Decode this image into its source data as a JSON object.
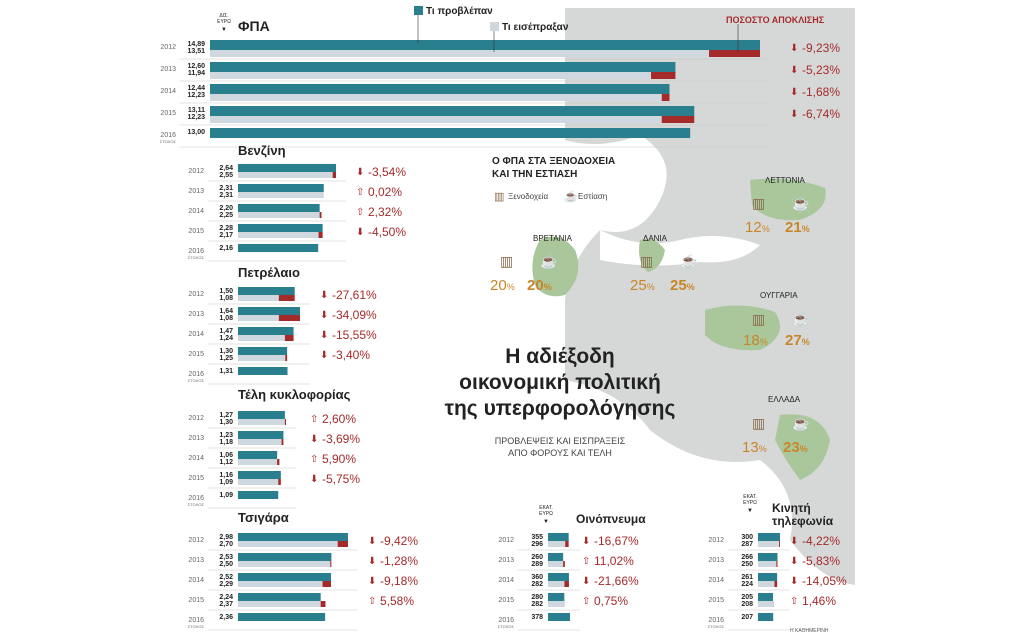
{
  "legend": {
    "forecast": "Τι προβλέπαν",
    "collected": "Τι εισέπραξαν",
    "deviation": "ΠΟΣΟΣΤΟ ΑΠΟΚΛΙΣΗΣ"
  },
  "unit_label": "ΔΙΣ. ΕΥΡΩ",
  "colors": {
    "forecast": "#2a7f8f",
    "collected": "#cfd8df",
    "deviation": "#a52a2a",
    "map_land": "#d6d8d8",
    "map_hl": "#a9c79a",
    "map_sea": "#ffffff",
    "pct_orange": "#c8862a"
  },
  "headline": {
    "title_line1": "Η αδιέξοδη",
    "title_line2": "οικονομική πολιτική",
    "title_line3": "της υπερφορολόγησης",
    "sub_line1": "ΠΡΟΒΛΕΨΕΙΣ ΚΑΙ ΕΙΣΠΡΑΞΕΙΣ",
    "sub_line2": "ΑΠΟ ΦΟΡΟΥΣ ΚΑΙ ΤΕΛΗ"
  },
  "vat_map": {
    "title_line1": "Ο ΦΠΑ ΣΤΑ ΞΕΝΟΔΟΧΕΙΑ",
    "title_line2": "ΚΑΙ ΤΗΝ ΕΣΤΙΑΣΗ",
    "hotels_label": "Ξενοδοχεία",
    "dining_label": "Εστίαση",
    "countries": [
      {
        "name": "ΒΡΕΤΑΝΙΑ",
        "hotels": "20",
        "dining": "20"
      },
      {
        "name": "ΔΑΝΙΑ",
        "hotels": "25",
        "dining": "25"
      },
      {
        "name": "ΛΕΤΤΟΝΙΑ",
        "hotels": "12",
        "dining": "21"
      },
      {
        "name": "ΟΥΓΓΑΡΙΑ",
        "hotels": "18",
        "dining": "27"
      },
      {
        "name": "ΕΛΛΑΔΑ",
        "hotels": "13",
        "dining": "23"
      }
    ]
  },
  "source_credit": "Η ΚΑΘΗΜΕΡΙΝΗ",
  "chart_data": [
    {
      "type": "bar",
      "title": "ΦΠΑ",
      "unit": "ΔΙΣ. ΕΥΡΩ",
      "categories": [
        "2012",
        "2013",
        "2014",
        "2015",
        "2016 ΣΤΟΧΟΣ"
      ],
      "series": [
        {
          "name": "Τι προβλέπαν",
          "values": [
            14.89,
            12.6,
            12.44,
            13.11,
            13.0
          ]
        },
        {
          "name": "Τι εισέπραξαν",
          "values": [
            13.51,
            11.94,
            12.23,
            12.23,
            null
          ]
        }
      ],
      "deviation_pct": [
        "-9,23%",
        "-5,23%",
        "-1,68%",
        "-6,74%"
      ]
    },
    {
      "type": "bar",
      "title": "Βενζίνη",
      "categories": [
        "2012",
        "2013",
        "2014",
        "2015",
        "2016 ΣΤΟΧΟΣ"
      ],
      "series": [
        {
          "name": "Τι προβλέπαν",
          "values": [
            2.64,
            2.31,
            2.2,
            2.28,
            2.16
          ]
        },
        {
          "name": "Τι εισέπραξαν",
          "values": [
            2.55,
            2.31,
            2.25,
            2.17,
            null
          ]
        }
      ],
      "deviation_pct": [
        "-3,54%",
        "0,02%",
        "2,32%",
        "-4,50%"
      ]
    },
    {
      "type": "bar",
      "title": "Πετρέλαιο",
      "categories": [
        "2012",
        "2013",
        "2014",
        "2015",
        "2016 ΣΤΟΧΟΣ"
      ],
      "series": [
        {
          "name": "Τι προβλέπαν",
          "values": [
            1.5,
            1.64,
            1.47,
            1.3,
            1.31
          ]
        },
        {
          "name": "Τι εισέπραξαν",
          "values": [
            1.08,
            1.08,
            1.24,
            1.25,
            null
          ]
        }
      ],
      "deviation_pct": [
        "-27,61%",
        "-34,09%",
        "-15,55%",
        "-3,40%"
      ]
    },
    {
      "type": "bar",
      "title": "Τέλη κυκλοφορίας",
      "categories": [
        "2012",
        "2013",
        "2014",
        "2015",
        "2016 ΣΤΟΧΟΣ"
      ],
      "series": [
        {
          "name": "Τι προβλέπαν",
          "values": [
            1.27,
            1.23,
            1.06,
            1.16,
            1.09
          ]
        },
        {
          "name": "Τι εισέπραξαν",
          "values": [
            1.3,
            1.18,
            1.12,
            1.09,
            null
          ]
        }
      ],
      "deviation_pct": [
        "2,60%",
        "-3,69%",
        "5,90%",
        "-5,75%"
      ]
    },
    {
      "type": "bar",
      "title": "Τσιγάρα",
      "categories": [
        "2012",
        "2013",
        "2014",
        "2015",
        "2016 ΣΤΟΧΟΣ"
      ],
      "series": [
        {
          "name": "Τι προβλέπαν",
          "values": [
            2.98,
            2.53,
            2.52,
            2.24,
            2.36
          ]
        },
        {
          "name": "Τι εισέπραξαν",
          "values": [
            2.7,
            2.5,
            2.29,
            2.37,
            null
          ]
        }
      ],
      "deviation_pct": [
        "-9,42%",
        "-1,28%",
        "-9,18%",
        "5,58%"
      ]
    },
    {
      "type": "bar",
      "title": "Οινόπνευμα",
      "unit": "ΕΚΑΤ. ΕΥΡΩ",
      "categories": [
        "2012",
        "2013",
        "2014",
        "2015",
        "2016 ΣΤΟΧΟΣ"
      ],
      "series": [
        {
          "name": "Τι προβλέπαν",
          "values": [
            355,
            260,
            360,
            280,
            378
          ]
        },
        {
          "name": "Τι εισέπραξαν",
          "values": [
            296,
            289,
            282,
            282,
            null
          ]
        }
      ],
      "deviation_pct": [
        "-16,67%",
        "11,02%",
        "-21,66%",
        "0,75%"
      ]
    },
    {
      "type": "bar",
      "title": "Κινητή τηλεφωνία",
      "unit": "ΕΚΑΤ. ΕΥΡΩ",
      "categories": [
        "2012",
        "2013",
        "2014",
        "2015",
        "2016 ΣΤΟΧΟΣ"
      ],
      "series": [
        {
          "name": "Τι προβλέπαν",
          "values": [
            300,
            266,
            261,
            205,
            207
          ]
        },
        {
          "name": "Τι εισέπραξαν",
          "values": [
            287,
            250,
            224,
            208,
            null
          ]
        }
      ],
      "deviation_pct": [
        "-4,22%",
        "-5,83%",
        "-14,05%",
        "1,46%"
      ]
    }
  ]
}
